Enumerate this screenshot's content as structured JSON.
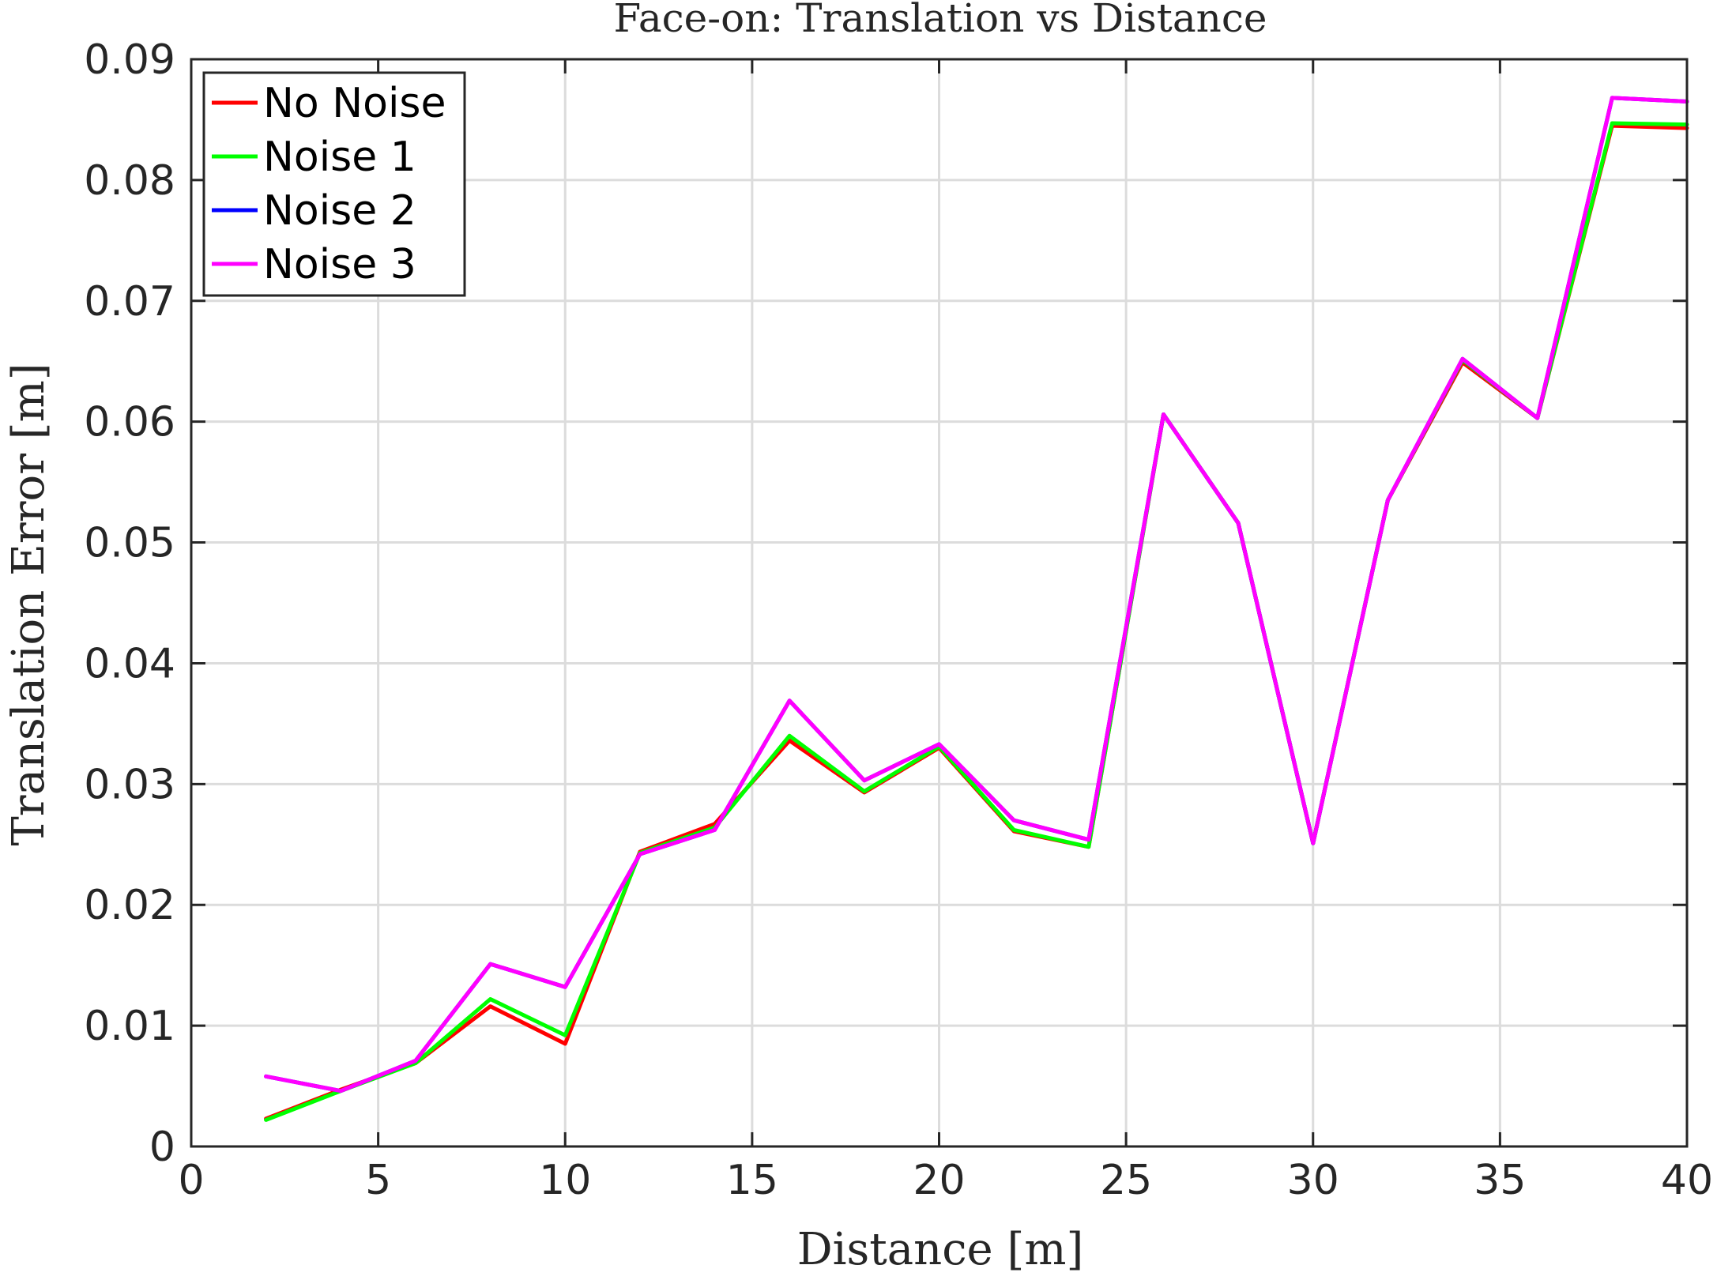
{
  "chart_data": {
    "type": "line",
    "title": "Face-on: Translation vs Distance",
    "xlabel": "Distance [m]",
    "ylabel": "Translation Error [m]",
    "xlim": [
      0,
      40
    ],
    "ylim": [
      0,
      0.09
    ],
    "xticks": [
      0,
      5,
      10,
      15,
      20,
      25,
      30,
      35,
      40
    ],
    "yticks": [
      0,
      0.01,
      0.02,
      0.03,
      0.04,
      0.05,
      0.06,
      0.07,
      0.08,
      0.09
    ],
    "xtick_labels": [
      "0",
      "5",
      "10",
      "15",
      "20",
      "25",
      "30",
      "35",
      "40"
    ],
    "ytick_labels": [
      "0",
      "0.01",
      "0.02",
      "0.03",
      "0.04",
      "0.05",
      "0.06",
      "0.07",
      "0.08",
      "0.09"
    ],
    "grid": true,
    "legend_position": "top-left",
    "x": [
      2,
      4,
      6,
      8,
      10,
      12,
      14,
      16,
      18,
      20,
      22,
      24,
      26,
      28,
      30,
      32,
      34,
      36,
      38,
      40
    ],
    "series": [
      {
        "name": "No Noise",
        "color": "#ff0000",
        "values": [
          0.0023,
          0.0047,
          0.0069,
          0.0116,
          0.0085,
          0.0244,
          0.0267,
          0.0336,
          0.0293,
          0.033,
          0.0261,
          0.0248,
          0.0606,
          0.0516,
          0.0251,
          0.0535,
          0.0649,
          0.0603,
          0.0845,
          0.0843
        ]
      },
      {
        "name": "Noise 1",
        "color": "#00ff00",
        "values": [
          0.0022,
          0.0046,
          0.0069,
          0.0122,
          0.0092,
          0.0243,
          0.0264,
          0.034,
          0.0294,
          0.0331,
          0.0262,
          0.0248,
          0.0606,
          0.0516,
          0.0251,
          0.0535,
          0.0651,
          0.0603,
          0.0847,
          0.0846
        ]
      },
      {
        "name": "Noise 2",
        "color": "#0000ff",
        "values": [
          0.0058,
          0.0046,
          0.0071,
          0.0151,
          0.0132,
          0.0242,
          0.0262,
          0.0369,
          0.0303,
          0.0333,
          0.027,
          0.0254,
          0.0606,
          0.0516,
          0.0251,
          0.0535,
          0.0652,
          0.0603,
          0.0868,
          0.0865
        ]
      },
      {
        "name": "Noise 3",
        "color": "#ff00ff",
        "values": [
          0.0058,
          0.0046,
          0.0071,
          0.0151,
          0.0132,
          0.0242,
          0.0262,
          0.0369,
          0.0303,
          0.0333,
          0.027,
          0.0254,
          0.0606,
          0.0516,
          0.0251,
          0.0535,
          0.0652,
          0.0603,
          0.0868,
          0.0865
        ]
      }
    ]
  }
}
